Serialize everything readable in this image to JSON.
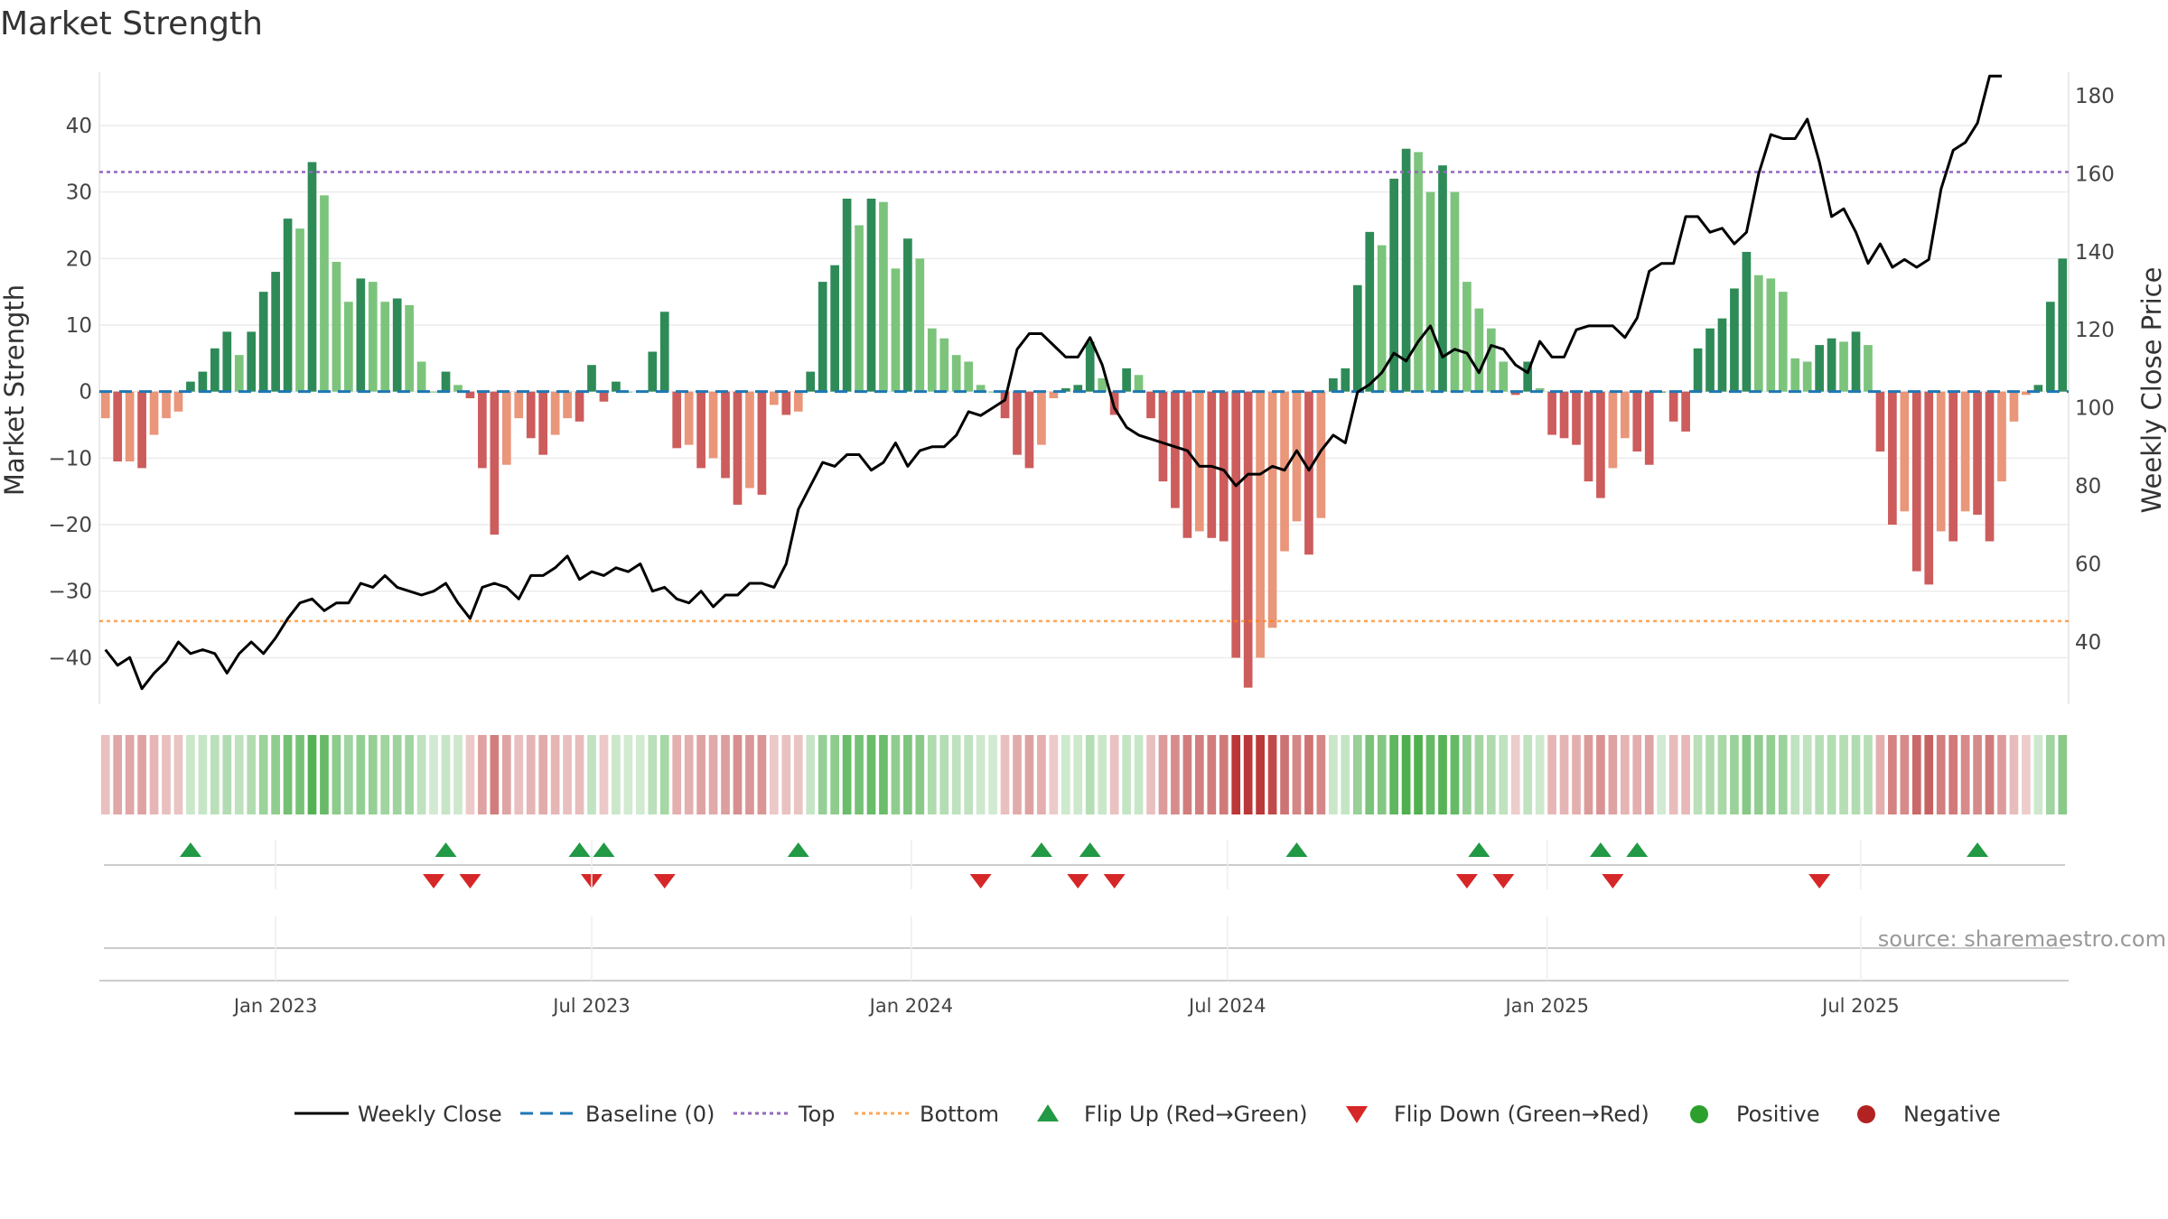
{
  "chart_data": {
    "type": "bar",
    "title": "Market Strength",
    "ylabel": "Market Strength",
    "y2label": "Weekly Close Price",
    "ylim": [
      -47,
      48
    ],
    "y2lim": [
      24,
      186
    ],
    "yticks": [
      40,
      30,
      20,
      10,
      0,
      -10,
      -20,
      -30,
      -40
    ],
    "y2ticks": [
      180,
      160,
      140,
      120,
      100,
      80,
      60,
      40
    ],
    "xticks": [
      "Jan 2023",
      "Jul 2023",
      "Jan 2024",
      "Jul 2024",
      "Jan 2025",
      "Jul 2025"
    ],
    "xtick_weeks": [
      14.5,
      40.5,
      66.8,
      92.8,
      119.1,
      144.9
    ],
    "top_level": 33,
    "bottom_level": -34.5,
    "strength": [
      -4,
      -10.5,
      -10.5,
      -11.5,
      -6.5,
      -4,
      -3,
      1.5,
      3,
      6.5,
      9,
      5.5,
      9,
      15,
      18,
      26,
      24.5,
      34.5,
      29.5,
      19.5,
      13.5,
      17,
      16.5,
      13.5,
      14,
      13,
      4.5,
      0,
      3,
      1,
      -1,
      -11.5,
      -21.5,
      -11,
      -4,
      -7,
      -9.5,
      -6.5,
      -4,
      -4.5,
      4,
      -1.5,
      1.5,
      0,
      0,
      6,
      12,
      -8.5,
      -8,
      -11.5,
      -10,
      -13,
      -17,
      -14.5,
      -15.5,
      -2,
      -3.5,
      -3,
      3,
      16.5,
      19,
      29,
      25,
      29,
      28.5,
      18.5,
      23,
      20,
      9.5,
      8,
      5.5,
      4.5,
      1,
      0,
      -4,
      -9.5,
      -11.5,
      -8,
      -1,
      0.5,
      1,
      7.5,
      2,
      -3.5,
      3.5,
      2.5,
      -4,
      -13.5,
      -17.5,
      -22,
      -21,
      -22,
      -22.5,
      -40,
      -44.5,
      -40,
      -35.5,
      -24,
      -19.5,
      -24.5,
      -19,
      2,
      3.5,
      16,
      24,
      22,
      32,
      36.5,
      36,
      30,
      34,
      30,
      16.5,
      12.5,
      9.5,
      4.5,
      -0.5,
      4.5,
      0.5,
      -6.5,
      -7,
      -8,
      -13.5,
      -16,
      -11.5,
      -7,
      -9,
      -11,
      0,
      -4.5,
      -6,
      6.5,
      9.5,
      11,
      15.5,
      21,
      17.5,
      17,
      15,
      5,
      4.5,
      7,
      8,
      7.5,
      9,
      7,
      -9,
      -20,
      -18,
      -27,
      -29,
      -21,
      -22.5,
      -18,
      -18.5,
      -22.5,
      -13.5,
      -4.5,
      -0.5,
      1,
      13.5,
      20
    ],
    "weekly_close": [
      38,
      34,
      36,
      28,
      32,
      35,
      40,
      37,
      38,
      37,
      32,
      37,
      40,
      37,
      41,
      46,
      50,
      51,
      48,
      50,
      50,
      55,
      54,
      57,
      54,
      53,
      52,
      53,
      55,
      50,
      46,
      54,
      55,
      54,
      51,
      57,
      57,
      59,
      62,
      56,
      58,
      57,
      59,
      58,
      60,
      53,
      54,
      51,
      50,
      53,
      49,
      52,
      52,
      55,
      55,
      54,
      60,
      74,
      80,
      86,
      85,
      88,
      88,
      84,
      86,
      91,
      85,
      89,
      90,
      90,
      93,
      99,
      98,
      100,
      102,
      115,
      119,
      119,
      116,
      113,
      113,
      118,
      111,
      100,
      95,
      93,
      92,
      91,
      90,
      89,
      85,
      85,
      84,
      80,
      83,
      83,
      85,
      84,
      89,
      84,
      89,
      93,
      91,
      104,
      106,
      109,
      114,
      112,
      117,
      121,
      113,
      115,
      114,
      109,
      116,
      115,
      111,
      109,
      117,
      113,
      113,
      120,
      121,
      121,
      121,
      118,
      123,
      135,
      137,
      137,
      149,
      149,
      145,
      146,
      142,
      145,
      160,
      170,
      169,
      169,
      174,
      163,
      149,
      151,
      145,
      137,
      142,
      136,
      138,
      136,
      138,
      156,
      166,
      168,
      173,
      185,
      185
    ],
    "flip_up_weeks": [
      7,
      28,
      39,
      41,
      57,
      77,
      81,
      98,
      113,
      123,
      126,
      154
    ],
    "flip_down_weeks": [
      27,
      30,
      40,
      46,
      72,
      80,
      83,
      112,
      115,
      124,
      141
    ],
    "legend": [
      "Weekly Close",
      "Baseline (0)",
      "Top",
      "Bottom",
      "Flip Up (Red→Green)",
      "Flip Down (Green→Red)",
      "Positive",
      "Negative"
    ],
    "colors": {
      "weekly_close": "#000000",
      "baseline": "#1f77b4",
      "top": "#9467bd",
      "bottom": "#ff7f0e",
      "flip_up": "#229944",
      "flip_down": "#d62728",
      "positive": "#2ca02c",
      "negative": "#b22222",
      "bar_strong_up": "#2e8b57",
      "bar_weak_up": "#7cc47c",
      "bar_strong_down": "#cd5c5c",
      "bar_weak_down": "#e9967a"
    }
  },
  "source": "source: sharemaestro.com"
}
